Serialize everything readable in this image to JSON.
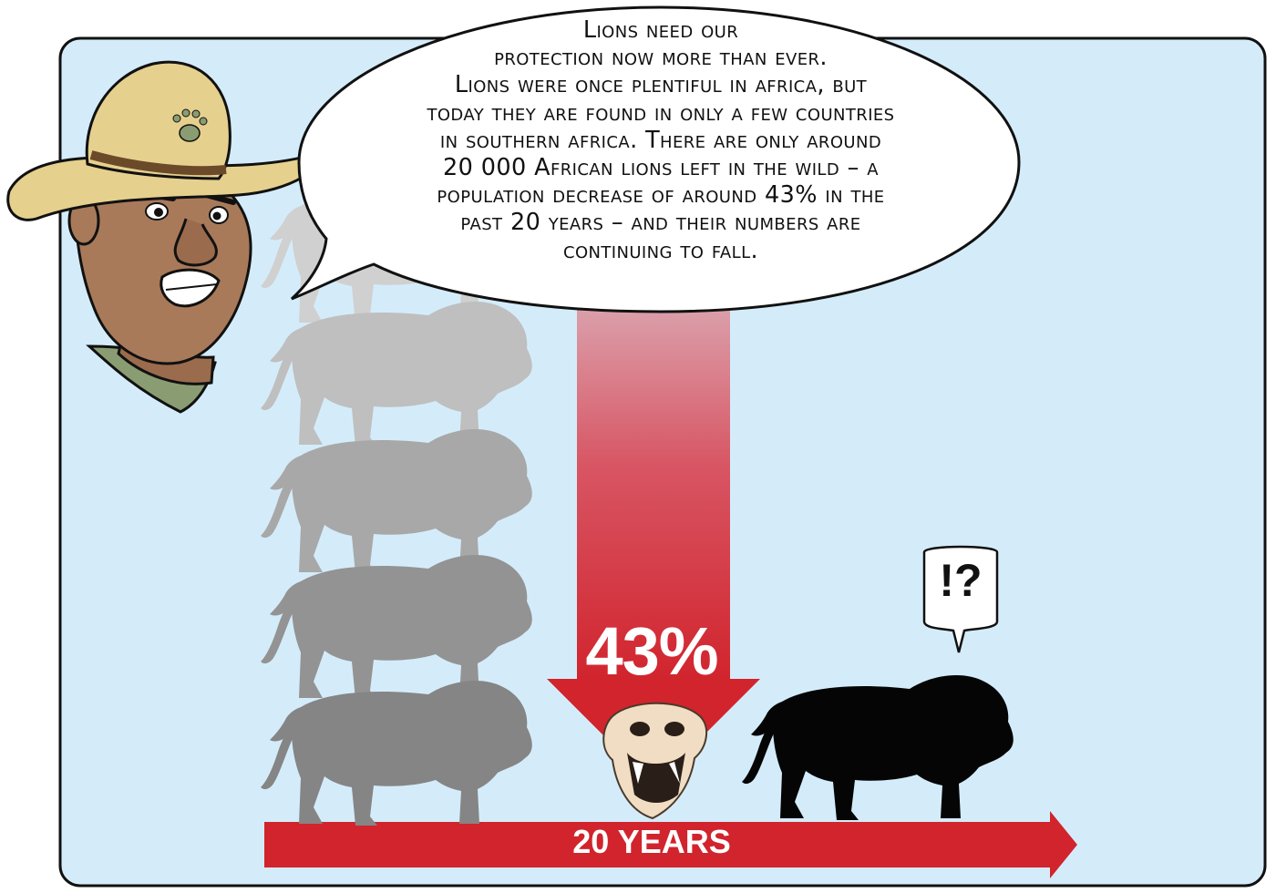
{
  "speech": {
    "lines": [
      "Lions need our",
      "protection now more than ever.",
      "Lions were once plentiful in africa, but",
      "today they are found in only a few countries",
      "in southern africa. There are only around",
      "20 000 African lions left in the wild – a",
      "population decrease of around 43% in the",
      "past 20 years – and their numbers are",
      "continuing to fall."
    ]
  },
  "decline_arrow": {
    "label": "43%"
  },
  "timeline_arrow": {
    "label": "20 YEARS"
  },
  "reaction_bubble": {
    "text": "!?"
  },
  "colors": {
    "panel_bg": "#d4ecfa",
    "arrow_red": "#d1242d",
    "lion_shades": [
      "#d0d0d0",
      "#bfbfbf",
      "#a8a8a8",
      "#939393",
      "#858585"
    ],
    "lion_last": "#050505"
  },
  "icons": [
    "ranger-character",
    "lion-silhouette",
    "lion-skull-icon",
    "speech-bubble",
    "thought-bubble"
  ]
}
